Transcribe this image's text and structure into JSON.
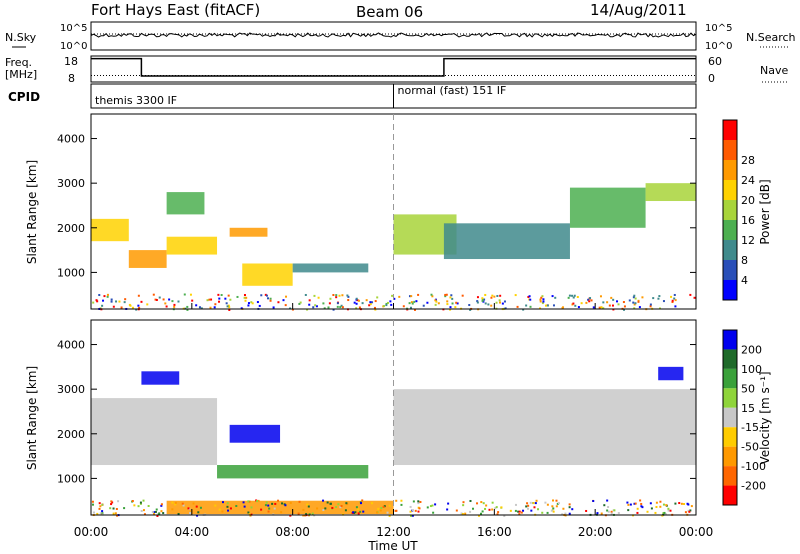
{
  "header": {
    "station": "Fort Hays East (fitACF)",
    "beam": "Beam 06",
    "date": "14/Aug/2011"
  },
  "noise_panel": {
    "left_label": "N.Sky",
    "right_label": "N.Search",
    "left_ticks": [
      "10^5",
      "10^0"
    ],
    "right_ticks": [
      "10^5",
      "10^0"
    ]
  },
  "freq_panel": {
    "left_label_line1": "Freq.",
    "left_label_line2": "[MHz]",
    "right_label": "Nave",
    "left_ticks": [
      "18",
      "8"
    ],
    "right_ticks": [
      "60",
      "0"
    ],
    "freq_segments": [
      {
        "t0": 0.0,
        "t1": 2.0,
        "mhz": 17
      },
      {
        "t0": 2.0,
        "t1": 14.0,
        "mhz": 10.3
      },
      {
        "t0": 14.0,
        "t1": 24.0,
        "mhz": 17
      }
    ],
    "nave_level": 15
  },
  "cpid": {
    "label": "CPID",
    "modes": [
      {
        "start": 0.0,
        "text": "themis 3300 IF"
      },
      {
        "start": 12.0,
        "text": "normal (fast) 151 IF"
      }
    ]
  },
  "colors": {
    "power": [
      "#0000ff",
      "#2a4fb8",
      "#3f8a8c",
      "#4caf50",
      "#a8d43a",
      "#ffd200",
      "#ff9a00",
      "#ff5a00",
      "#ff0000"
    ],
    "velocity": [
      "#0000ee",
      "#1f6a2a",
      "#3aa13a",
      "#8fd43a",
      "#c8c8c8",
      "#ffcc00",
      "#ff9900",
      "#ff6600",
      "#ff0000"
    ]
  },
  "chart_data": [
    {
      "type": "heatmap",
      "name": "power",
      "ylabel": "Slant Range [km]",
      "ylim": [
        180,
        4550
      ],
      "xlim": [
        0,
        24
      ],
      "yticks": [
        "1000",
        "2000",
        "3000",
        "4000"
      ],
      "colorbar_label": "Power [dB]",
      "colorbar_ticks": [
        "4",
        "8",
        "12",
        "16",
        "20",
        "24",
        "28"
      ],
      "cells": [
        {
          "t0": 0.0,
          "t1": 1.5,
          "r0": 1700,
          "r1": 2200,
          "v": 20
        },
        {
          "t0": 1.5,
          "t1": 3.0,
          "r0": 1100,
          "r1": 1500,
          "v": 27
        },
        {
          "t0": 3.0,
          "t1": 5.0,
          "r0": 1400,
          "r1": 1800,
          "v": 23
        },
        {
          "t0": 5.5,
          "t1": 7.0,
          "r0": 1800,
          "r1": 2000,
          "v": 26
        },
        {
          "t0": 6.0,
          "t1": 8.0,
          "r0": 700,
          "r1": 1200,
          "v": 22
        },
        {
          "t0": 3.0,
          "t1": 4.5,
          "r0": 2300,
          "r1": 2800,
          "v": 12
        },
        {
          "t0": 8.0,
          "t1": 11.0,
          "r0": 1000,
          "r1": 1200,
          "v": 8
        },
        {
          "t0": 12.0,
          "t1": 14.5,
          "r0": 1400,
          "r1": 2300,
          "v": 16
        },
        {
          "t0": 14.0,
          "t1": 19.0,
          "r0": 1300,
          "r1": 2100,
          "v": 10
        },
        {
          "t0": 19.0,
          "t1": 22.0,
          "r0": 2000,
          "r1": 2900,
          "v": 14
        },
        {
          "t0": 22.0,
          "t1": 24.0,
          "r0": 2600,
          "r1": 3000,
          "v": 17
        }
      ]
    },
    {
      "type": "heatmap",
      "name": "velocity",
      "xlabel": "Time UT",
      "ylabel": "Slant Range [km]",
      "ylim": [
        180,
        4550
      ],
      "xlim": [
        0,
        24
      ],
      "xticks": [
        "00:00",
        "04:00",
        "08:00",
        "12:00",
        "16:00",
        "20:00",
        "00:00"
      ],
      "yticks": [
        "1000",
        "2000",
        "3000",
        "4000"
      ],
      "colorbar_label": "Velocity [m s⁻¹]",
      "colorbar_ticks": [
        "200",
        "100",
        "50",
        "15",
        "-15",
        "-50",
        "-100",
        "-200"
      ],
      "cells": [
        {
          "t0": 0.0,
          "t1": 5.0,
          "r0": 1300,
          "r1": 2800,
          "v": 0
        },
        {
          "t0": 5.5,
          "t1": 7.5,
          "r0": 1800,
          "r1": 2200,
          "v": 220
        },
        {
          "t0": 2.0,
          "t1": 3.5,
          "r0": 3100,
          "r1": 3400,
          "v": 220
        },
        {
          "t0": 5.0,
          "t1": 11.0,
          "r0": 1000,
          "r1": 1300,
          "v": 60
        },
        {
          "t0": 3.0,
          "t1": 12.0,
          "r0": 200,
          "r1": 500,
          "v": -60
        },
        {
          "t0": 12.0,
          "t1": 24.0,
          "r0": 1300,
          "r1": 3000,
          "v": 0
        },
        {
          "t0": 22.5,
          "t1": 23.5,
          "r0": 3200,
          "r1": 3500,
          "v": 200
        }
      ]
    }
  ]
}
